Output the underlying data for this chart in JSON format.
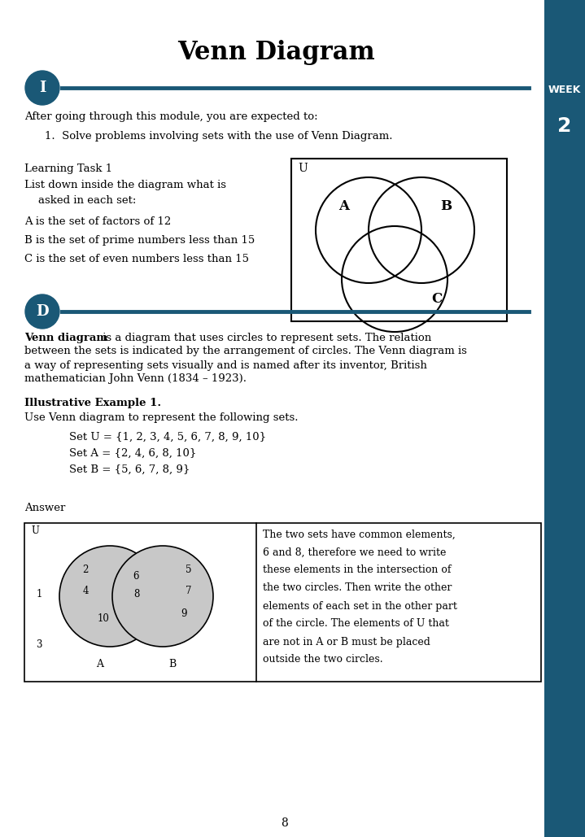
{
  "title": "Venn Diagram",
  "week_label": "WEEK",
  "week_number": "2",
  "week_bg": "#1a5876",
  "circle_i_label": "I",
  "circle_d_label": "D",
  "circle_bg": "#1a5876",
  "line_color": "#1a5876",
  "intro_text": "After going through this module, you are expected to:",
  "objective": "1.  Solve problems involving sets with the use of Venn Diagram.",
  "task_title": "Learning Task 1",
  "task_line1": "List down inside the diagram what is",
  "task_line2": "    asked in each set:",
  "task_a": "A is the set of factors of 12",
  "task_b": "B is the set of prime numbers less than 15",
  "task_c": "C is the set of even numbers less than 15",
  "example_title": "Illustrative Example 1.",
  "example_intro": "Use Venn diagram to represent the following sets.",
  "set_u": "Set U = {1, 2, 3, 4, 5, 6, 7, 8, 9, 10}",
  "set_a": "Set A = {2, 4, 6, 8, 10}",
  "set_b": "Set B = {5, 6, 7, 8, 9}",
  "answer_label": "Answer",
  "page_number": "8",
  "bg_color": "#f5f5f5",
  "text_color": "#000000",
  "page_bg": "#ffffff"
}
